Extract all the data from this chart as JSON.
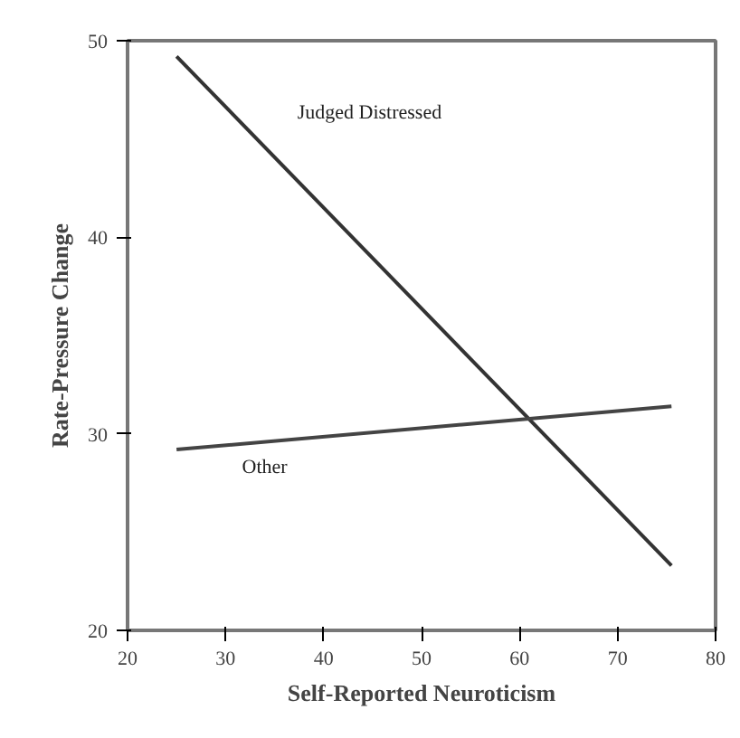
{
  "chart_data": {
    "type": "line",
    "xlabel": "Self-Reported Neuroticism",
    "ylabel": "Rate-Pressure Change",
    "x": [
      25,
      75.5
    ],
    "series": [
      {
        "name": "Judged Distressed",
        "color": "#333333",
        "values": [
          49.2,
          23.3
        ]
      },
      {
        "name": "Other",
        "color": "#444444",
        "values": [
          29.2,
          31.4
        ]
      }
    ],
    "xlim": [
      20,
      80
    ],
    "ylim": [
      20,
      50
    ],
    "xticks": [
      20,
      30,
      40,
      50,
      60,
      70,
      80
    ],
    "yticks": [
      20,
      30,
      40,
      50
    ],
    "grid": false,
    "marker": "none",
    "line_style": "solid"
  }
}
